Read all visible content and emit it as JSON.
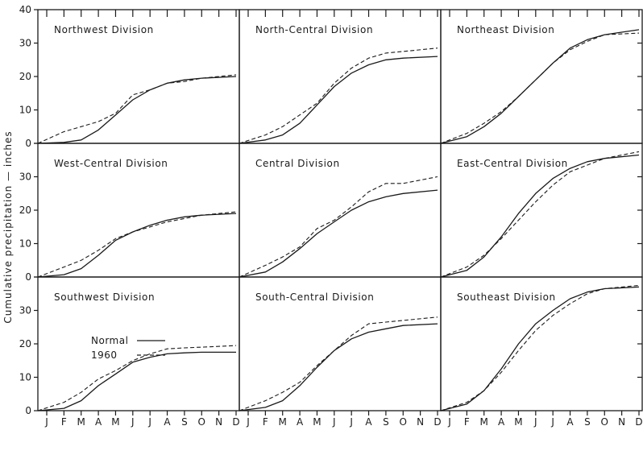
{
  "chart_data": {
    "type": "line",
    "ylabel": "Cumulative precipitation — inches",
    "y_ticks": [
      "0",
      "10",
      "20",
      "30",
      "40"
    ],
    "x_ticks": [
      "J",
      "F",
      "M",
      "A",
      "M",
      "J",
      "J",
      "A",
      "S",
      "O",
      "N",
      "D"
    ],
    "ylim": [
      0,
      40
    ],
    "grid": false,
    "legend": {
      "placement": "inside Southwest Division panel",
      "entries": [
        "Normal",
        "1960"
      ],
      "styles": [
        "solid",
        "dashed"
      ]
    },
    "panels": [
      {
        "title": "Northwest Division",
        "series": [
          {
            "name": "Normal",
            "values": [
              0,
              0.3,
              1.0,
              4.0,
              8.5,
              13.0,
              16.0,
              18.0,
              19.0,
              19.5,
              20.0
            ]
          },
          {
            "name": "1960",
            "values": [
              0,
              3.5,
              5.0,
              6.5,
              9.0,
              14.5,
              16.0,
              18.0,
              18.5,
              19.5,
              20.5
            ]
          }
        ]
      },
      {
        "title": "North-Central Division",
        "series": [
          {
            "name": "Normal",
            "values": [
              0,
              1.0,
              2.5,
              6.0,
              11.5,
              17.0,
              21.0,
              23.5,
              25.0,
              25.5,
              26.0
            ]
          },
          {
            "name": "1960",
            "values": [
              0,
              2.5,
              5.0,
              8.5,
              12.0,
              18.0,
              22.5,
              25.5,
              27.0,
              27.5,
              28.5
            ]
          }
        ]
      },
      {
        "title": "Northeast Division",
        "series": [
          {
            "name": "Normal",
            "values": [
              0,
              2.0,
              5.0,
              9.0,
              14.0,
              19.0,
              24.0,
              28.5,
              31.0,
              32.5,
              34.0
            ]
          },
          {
            "name": "1960",
            "values": [
              0,
              3.0,
              6.0,
              9.5,
              14.0,
              19.0,
              24.0,
              28.0,
              30.5,
              32.5,
              33.0
            ]
          }
        ]
      },
      {
        "title": "West-Central Division",
        "series": [
          {
            "name": "Normal",
            "values": [
              0,
              0.7,
              2.5,
              6.5,
              11.0,
              13.5,
              15.5,
              17.0,
              18.0,
              18.5,
              19.0
            ]
          },
          {
            "name": "1960",
            "values": [
              0,
              3.0,
              5.0,
              8.0,
              11.5,
              13.5,
              15.0,
              16.5,
              17.5,
              18.5,
              19.5
            ]
          }
        ]
      },
      {
        "title": "Central Division",
        "series": [
          {
            "name": "Normal",
            "values": [
              0,
              1.5,
              4.5,
              8.5,
              13.0,
              16.5,
              20.0,
              22.5,
              24.0,
              25.0,
              26.0
            ]
          },
          {
            "name": "1960",
            "values": [
              0,
              3.5,
              6.0,
              9.0,
              14.5,
              17.0,
              21.0,
              25.5,
              28.0,
              28.0,
              30.0
            ]
          }
        ]
      },
      {
        "title": "East-Central Division",
        "series": [
          {
            "name": "Normal",
            "values": [
              0,
              2.0,
              6.0,
              12.0,
              19.0,
              25.0,
              29.5,
              32.5,
              34.5,
              35.5,
              36.5
            ]
          },
          {
            "name": "1960",
            "values": [
              0,
              3.0,
              6.5,
              11.5,
              17.0,
              22.5,
              27.5,
              31.5,
              33.5,
              35.5,
              37.5
            ]
          }
        ]
      },
      {
        "title": "Southwest Division",
        "series": [
          {
            "name": "Normal",
            "values": [
              0,
              0.7,
              3.0,
              7.5,
              11.0,
              14.5,
              16.0,
              17.0,
              17.3,
              17.5,
              17.5
            ]
          },
          {
            "name": "1960",
            "values": [
              0,
              2.5,
              5.5,
              9.5,
              12.0,
              15.0,
              17.0,
              18.5,
              18.8,
              19.0,
              19.5
            ]
          }
        ]
      },
      {
        "title": "South-Central Division",
        "series": [
          {
            "name": "Normal",
            "values": [
              0,
              1.0,
              3.0,
              7.5,
              13.0,
              18.0,
              21.5,
              23.5,
              24.5,
              25.5,
              26.0
            ]
          },
          {
            "name": "1960",
            "values": [
              0,
              3.0,
              5.5,
              8.5,
              13.5,
              18.0,
              22.5,
              26.0,
              26.5,
              27.0,
              28.0
            ]
          }
        ]
      },
      {
        "title": "Southeast Division",
        "series": [
          {
            "name": "Normal",
            "values": [
              0,
              2.0,
              6.0,
              12.5,
              20.0,
              26.0,
              30.0,
              33.5,
              35.5,
              36.5,
              37.0
            ]
          },
          {
            "name": "1960",
            "values": [
              0,
              2.5,
              6.0,
              11.5,
              18.0,
              24.0,
              28.5,
              32.0,
              35.0,
              36.5,
              37.5
            ]
          }
        ]
      }
    ]
  },
  "colors": {
    "ink": "#1a1a1a",
    "background": "#ffffff"
  }
}
